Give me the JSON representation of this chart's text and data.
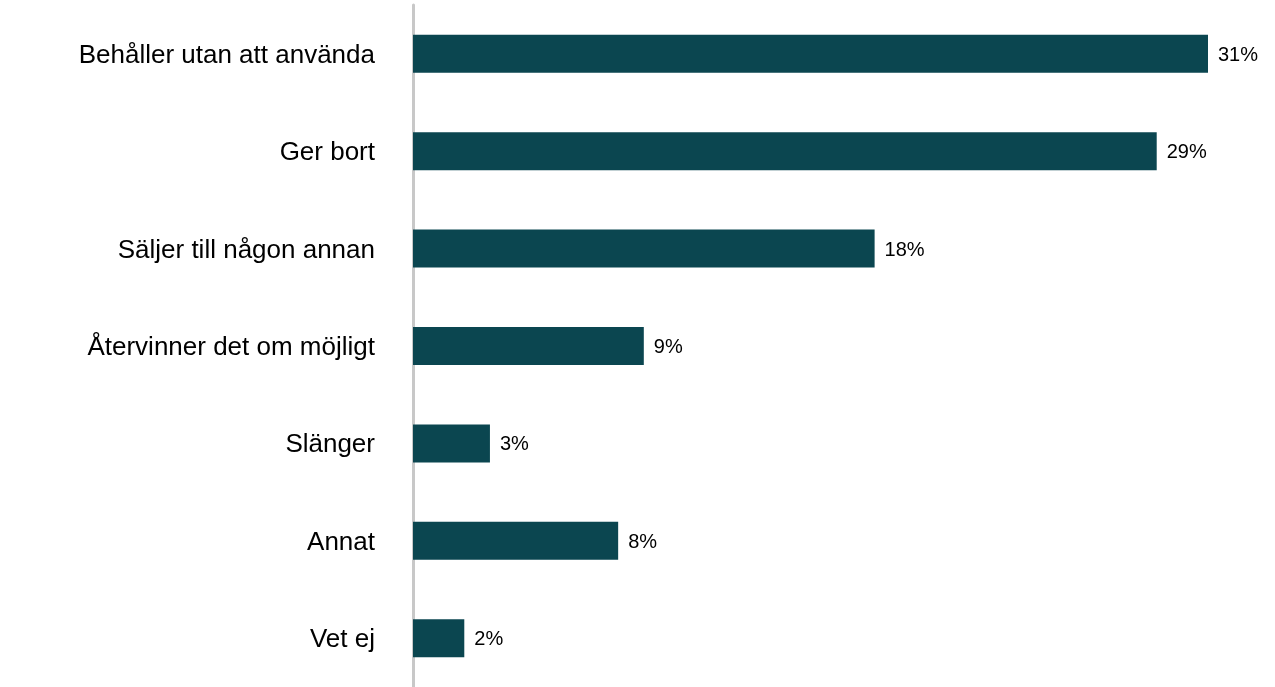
{
  "chart_data": {
    "type": "bar",
    "orientation": "horizontal",
    "categories": [
      "Behåller utan att använda",
      "Ger bort",
      "Säljer till någon annan",
      "Återvinner det om möjligt",
      "Slänger",
      "Annat",
      "Vet ej"
    ],
    "values": [
      31,
      29,
      18,
      9,
      3,
      8,
      2
    ],
    "value_labels": [
      "31%",
      "29%",
      "18%",
      "9%",
      "3%",
      "8%",
      "2%"
    ],
    "color": "#0b4650"
  }
}
